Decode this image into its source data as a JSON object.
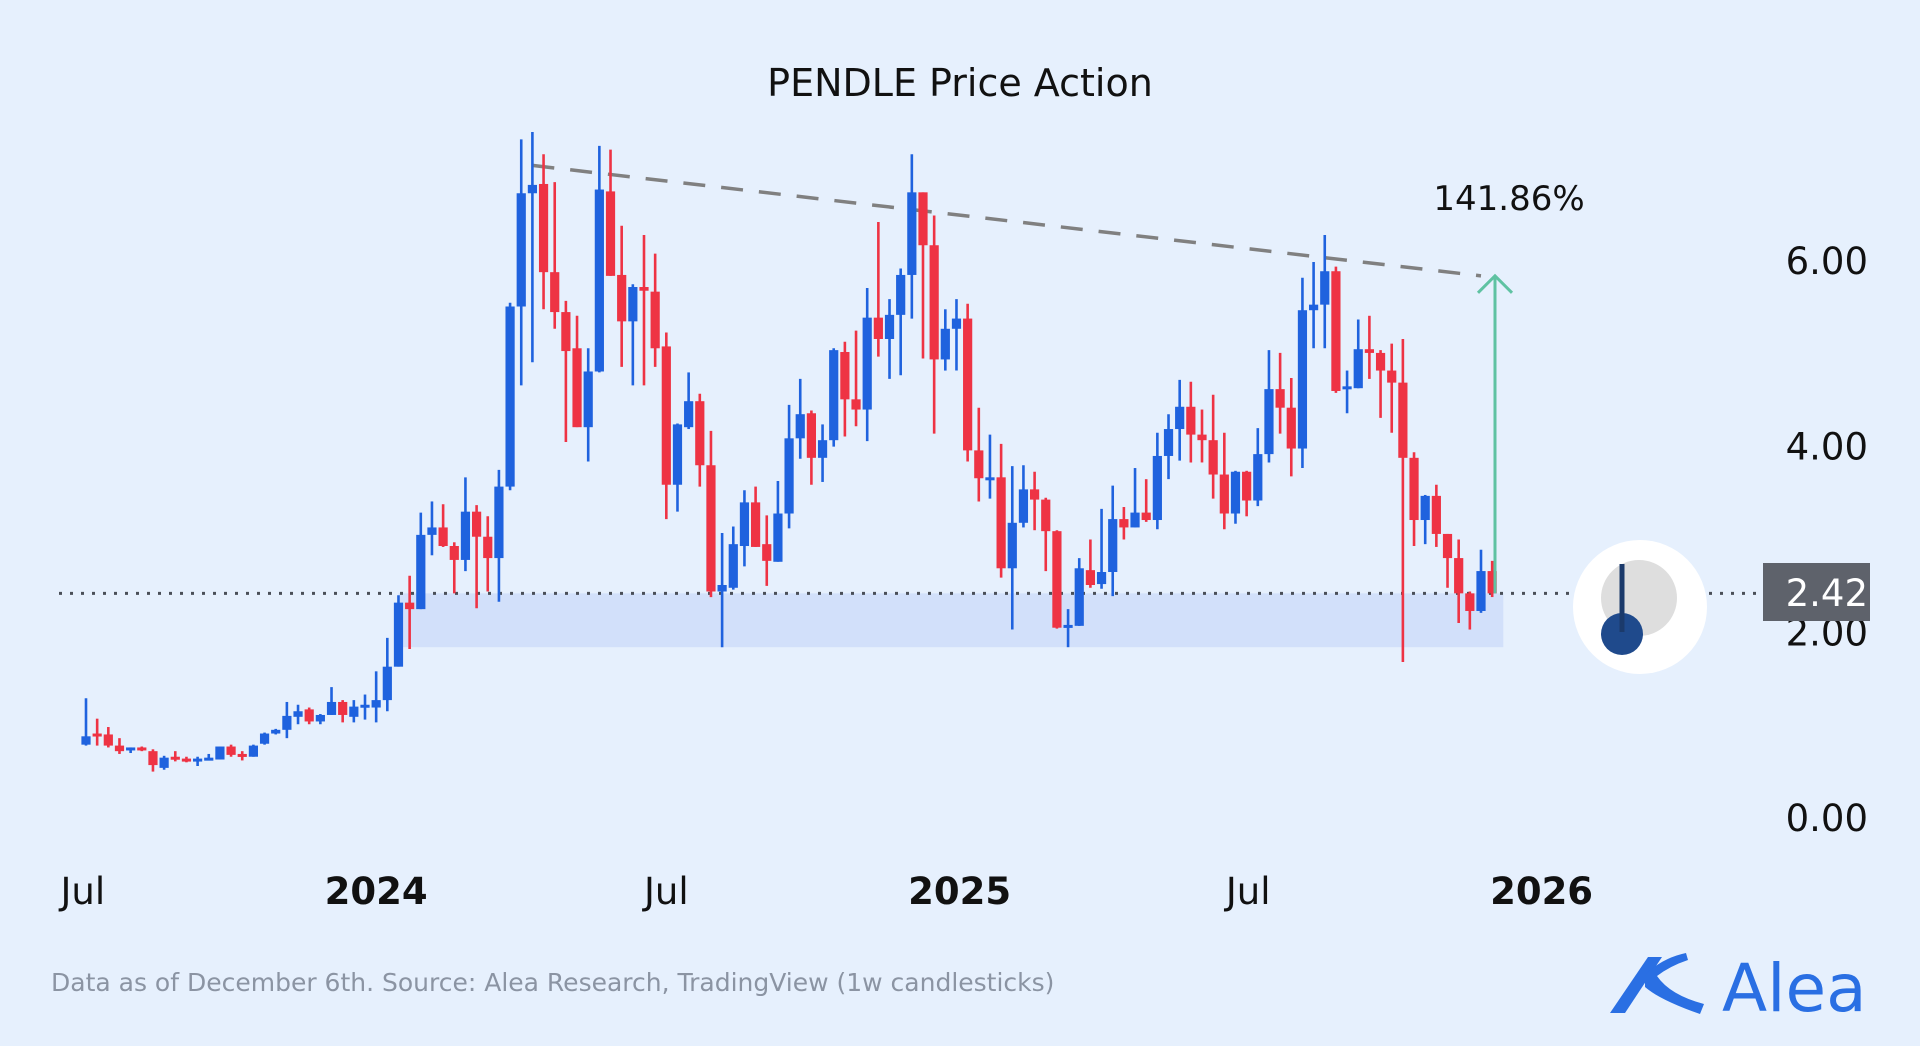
{
  "chart_data": {
    "type": "candlestick",
    "title": "PENDLE Price Action",
    "interval": "1w",
    "y_ticks": [
      "0.00",
      "2.00",
      "4.00",
      "6.00"
    ],
    "y_tick_values": [
      0,
      2,
      4,
      6
    ],
    "ylim": [
      0,
      7.6
    ],
    "xlim": [
      "2023-06-26",
      "2026-01-20"
    ],
    "x_ticks": [
      {
        "label": "Jul",
        "date": "2023-07-01",
        "bold": false
      },
      {
        "label": "2024",
        "date": "2024-01-01",
        "bold": true
      },
      {
        "label": "Jul",
        "date": "2024-07-01",
        "bold": false
      },
      {
        "label": "2025",
        "date": "2025-01-01",
        "bold": true
      },
      {
        "label": "Jul",
        "date": "2025-07-01",
        "bold": false
      },
      {
        "label": "2026",
        "date": "2026-01-01",
        "bold": true
      }
    ],
    "grid": false,
    "colors": {
      "up": "#1f62de",
      "down": "#ee3344",
      "background": "#e6f0fd",
      "arrow": "#5fc2a2",
      "trendline": "#808080",
      "support_zone": "#d2e0fa",
      "last_price_box": "#5e626b"
    },
    "candle_fields": [
      "date",
      "open",
      "high",
      "low",
      "close"
    ],
    "candles": [
      [
        "2023-07-03",
        0.79,
        1.29,
        0.78,
        0.88
      ],
      [
        "2023-07-10",
        0.91,
        1.07,
        0.78,
        0.88
      ],
      [
        "2023-07-17",
        0.9,
        0.98,
        0.76,
        0.78
      ],
      [
        "2023-07-24",
        0.78,
        0.86,
        0.69,
        0.72
      ],
      [
        "2023-07-31",
        0.74,
        0.76,
        0.7,
        0.76
      ],
      [
        "2023-08-07",
        0.76,
        0.77,
        0.72,
        0.74
      ],
      [
        "2023-08-14",
        0.72,
        0.74,
        0.5,
        0.57
      ],
      [
        "2023-08-21",
        0.54,
        0.67,
        0.52,
        0.65
      ],
      [
        "2023-08-28",
        0.66,
        0.72,
        0.61,
        0.63
      ],
      [
        "2023-09-04",
        0.64,
        0.66,
        0.6,
        0.62
      ],
      [
        "2023-09-11",
        0.62,
        0.66,
        0.56,
        0.64
      ],
      [
        "2023-09-18",
        0.63,
        0.69,
        0.62,
        0.65
      ],
      [
        "2023-09-25",
        0.63,
        0.77,
        0.63,
        0.77
      ],
      [
        "2023-10-02",
        0.77,
        0.79,
        0.66,
        0.68
      ],
      [
        "2023-10-09",
        0.69,
        0.72,
        0.62,
        0.66
      ],
      [
        "2023-10-16",
        0.66,
        0.79,
        0.66,
        0.78
      ],
      [
        "2023-10-23",
        0.8,
        0.92,
        0.79,
        0.91
      ],
      [
        "2023-10-30",
        0.91,
        0.96,
        0.9,
        0.95
      ],
      [
        "2023-11-06",
        0.95,
        1.25,
        0.86,
        1.1
      ],
      [
        "2023-11-13",
        1.09,
        1.22,
        1.01,
        1.15
      ],
      [
        "2023-11-20",
        1.17,
        1.19,
        1.01,
        1.04
      ],
      [
        "2023-11-27",
        1.04,
        1.12,
        1.01,
        1.11
      ],
      [
        "2023-12-04",
        1.11,
        1.41,
        1.11,
        1.25
      ],
      [
        "2023-12-11",
        1.25,
        1.27,
        1.03,
        1.11
      ],
      [
        "2023-12-18",
        1.09,
        1.27,
        1.03,
        1.2
      ],
      [
        "2023-12-25",
        1.19,
        1.33,
        1.06,
        1.22
      ],
      [
        "2024-01-01",
        1.19,
        1.58,
        1.03,
        1.27
      ],
      [
        "2024-01-08",
        1.27,
        1.94,
        1.15,
        1.63
      ],
      [
        "2024-01-15",
        1.63,
        2.4,
        1.63,
        2.32
      ],
      [
        "2024-01-22",
        2.32,
        2.61,
        1.82,
        2.25
      ],
      [
        "2024-01-29",
        2.25,
        3.29,
        2.25,
        3.05
      ],
      [
        "2024-02-05",
        3.05,
        3.41,
        2.83,
        3.13
      ],
      [
        "2024-02-12",
        3.13,
        3.38,
        2.92,
        2.93
      ],
      [
        "2024-02-19",
        2.93,
        2.97,
        2.42,
        2.78
      ],
      [
        "2024-02-26",
        2.78,
        3.67,
        2.66,
        3.3
      ],
      [
        "2024-03-04",
        3.3,
        3.37,
        2.26,
        3.03
      ],
      [
        "2024-03-11",
        3.03,
        3.25,
        2.44,
        2.8
      ],
      [
        "2024-03-18",
        2.8,
        3.75,
        2.33,
        3.57
      ],
      [
        "2024-03-25",
        3.57,
        5.55,
        3.53,
        5.51
      ],
      [
        "2024-04-01",
        5.51,
        7.31,
        4.66,
        6.73
      ],
      [
        "2024-04-08",
        6.73,
        7.39,
        4.91,
        6.82
      ],
      [
        "2024-04-15",
        6.83,
        7.15,
        5.48,
        5.88
      ],
      [
        "2024-04-22",
        5.88,
        6.85,
        5.27,
        5.45
      ],
      [
        "2024-04-29",
        5.45,
        5.57,
        4.05,
        5.03
      ],
      [
        "2024-05-06",
        5.06,
        5.41,
        4.21,
        4.21
      ],
      [
        "2024-05-13",
        4.21,
        5.06,
        3.84,
        4.81
      ],
      [
        "2024-05-20",
        4.81,
        7.24,
        4.8,
        6.77
      ],
      [
        "2024-05-27",
        6.75,
        7.2,
        5.84,
        5.84
      ],
      [
        "2024-06-03",
        5.85,
        6.38,
        4.86,
        5.35
      ],
      [
        "2024-06-10",
        5.35,
        5.75,
        4.66,
        5.72
      ],
      [
        "2024-06-17",
        5.72,
        6.28,
        4.66,
        5.68
      ],
      [
        "2024-06-24",
        5.67,
        6.08,
        4.86,
        5.06
      ],
      [
        "2024-07-01",
        5.08,
        5.23,
        3.22,
        3.59
      ],
      [
        "2024-07-08",
        3.59,
        4.25,
        3.3,
        4.24
      ],
      [
        "2024-07-15",
        4.21,
        4.8,
        4.19,
        4.49
      ],
      [
        "2024-07-22",
        4.49,
        4.57,
        3.57,
        3.8
      ],
      [
        "2024-07-29",
        3.8,
        4.17,
        2.38,
        2.44
      ],
      [
        "2024-08-05",
        2.44,
        3.07,
        1.84,
        2.51
      ],
      [
        "2024-08-12",
        2.48,
        3.14,
        2.46,
        2.95
      ],
      [
        "2024-08-19",
        2.93,
        3.53,
        2.71,
        3.4
      ],
      [
        "2024-08-26",
        3.4,
        3.57,
        2.92,
        2.92
      ],
      [
        "2024-09-02",
        2.95,
        3.26,
        2.5,
        2.77
      ],
      [
        "2024-09-09",
        2.76,
        3.63,
        2.76,
        3.28
      ],
      [
        "2024-09-16",
        3.28,
        4.45,
        3.12,
        4.09
      ],
      [
        "2024-09-23",
        4.09,
        4.73,
        3.87,
        4.35
      ],
      [
        "2024-09-30",
        4.36,
        4.39,
        3.59,
        3.88
      ],
      [
        "2024-10-07",
        3.88,
        4.24,
        3.62,
        4.07
      ],
      [
        "2024-10-14",
        4.07,
        5.06,
        4.0,
        5.04
      ],
      [
        "2024-10-21",
        5.02,
        5.13,
        4.11,
        4.51
      ],
      [
        "2024-10-28",
        4.51,
        5.25,
        4.22,
        4.4
      ],
      [
        "2024-11-04",
        4.4,
        5.71,
        4.06,
        5.39
      ],
      [
        "2024-11-11",
        5.39,
        6.42,
        4.97,
        5.16
      ],
      [
        "2024-11-18",
        5.16,
        5.59,
        4.73,
        5.42
      ],
      [
        "2024-11-25",
        5.42,
        5.92,
        4.77,
        5.85
      ],
      [
        "2024-12-02",
        5.85,
        7.15,
        5.38,
        6.74
      ],
      [
        "2024-12-09",
        6.74,
        6.74,
        4.95,
        6.17
      ],
      [
        "2024-12-16",
        6.17,
        6.49,
        4.14,
        4.94
      ],
      [
        "2024-12-23",
        4.94,
        5.48,
        4.82,
        5.27
      ],
      [
        "2024-12-30",
        5.27,
        5.59,
        4.82,
        5.38
      ],
      [
        "2025-01-06",
        5.38,
        5.54,
        3.84,
        3.96
      ],
      [
        "2025-01-13",
        3.96,
        4.42,
        3.41,
        3.66
      ],
      [
        "2025-01-20",
        3.66,
        4.13,
        3.44,
        3.67
      ],
      [
        "2025-01-27",
        3.67,
        4.03,
        2.59,
        2.69
      ],
      [
        "2025-02-03",
        2.69,
        3.79,
        2.03,
        3.18
      ],
      [
        "2025-02-10",
        3.18,
        3.8,
        3.13,
        3.54
      ],
      [
        "2025-02-17",
        3.54,
        3.73,
        3.1,
        3.43
      ],
      [
        "2025-02-24",
        3.43,
        3.45,
        2.66,
        3.09
      ],
      [
        "2025-03-03",
        3.09,
        3.1,
        2.04,
        2.05
      ],
      [
        "2025-03-10",
        2.07,
        2.25,
        1.84,
        2.08
      ],
      [
        "2025-03-17",
        2.07,
        2.8,
        2.07,
        2.69
      ],
      [
        "2025-03-24",
        2.67,
        3.0,
        2.48,
        2.51
      ],
      [
        "2025-03-31",
        2.52,
        3.33,
        2.47,
        2.65
      ],
      [
        "2025-04-07",
        2.65,
        3.58,
        2.39,
        3.22
      ],
      [
        "2025-04-14",
        3.22,
        3.35,
        3.0,
        3.13
      ],
      [
        "2025-04-21",
        3.13,
        3.77,
        3.13,
        3.29
      ],
      [
        "2025-04-28",
        3.29,
        3.65,
        3.19,
        3.21
      ],
      [
        "2025-05-05",
        3.21,
        4.15,
        3.11,
        3.9
      ],
      [
        "2025-05-12",
        3.9,
        4.35,
        3.65,
        4.19
      ],
      [
        "2025-05-19",
        4.19,
        4.72,
        3.85,
        4.43
      ],
      [
        "2025-05-26",
        4.43,
        4.7,
        3.83,
        4.13
      ],
      [
        "2025-06-02",
        4.13,
        4.4,
        3.83,
        4.07
      ],
      [
        "2025-06-09",
        4.07,
        4.56,
        3.44,
        3.7
      ],
      [
        "2025-06-16",
        3.7,
        4.15,
        3.11,
        3.28
      ],
      [
        "2025-06-23",
        3.28,
        3.74,
        3.17,
        3.73
      ],
      [
        "2025-06-30",
        3.73,
        3.74,
        3.25,
        3.42
      ],
      [
        "2025-07-07",
        3.42,
        4.2,
        3.36,
        3.92
      ],
      [
        "2025-07-14",
        3.92,
        5.04,
        3.83,
        4.62
      ],
      [
        "2025-07-21",
        4.62,
        5.01,
        4.14,
        4.42
      ],
      [
        "2025-07-28",
        4.42,
        4.74,
        3.68,
        3.98
      ],
      [
        "2025-08-04",
        3.98,
        5.82,
        3.77,
        5.47
      ],
      [
        "2025-08-11",
        5.47,
        5.99,
        5.06,
        5.53
      ],
      [
        "2025-08-18",
        5.53,
        6.28,
        5.06,
        5.89
      ],
      [
        "2025-08-25",
        5.89,
        5.94,
        4.58,
        4.6
      ],
      [
        "2025-09-01",
        4.63,
        4.82,
        4.36,
        4.65
      ],
      [
        "2025-09-08",
        4.63,
        5.37,
        4.63,
        5.05
      ],
      [
        "2025-09-15",
        5.05,
        5.41,
        4.73,
        5.01
      ],
      [
        "2025-09-22",
        5.01,
        5.04,
        4.31,
        4.82
      ],
      [
        "2025-09-29",
        4.82,
        5.11,
        4.15,
        4.69
      ],
      [
        "2025-10-06",
        4.69,
        5.16,
        1.68,
        3.88
      ],
      [
        "2025-10-13",
        3.88,
        3.94,
        2.93,
        3.21
      ],
      [
        "2025-10-20",
        3.21,
        3.48,
        2.95,
        3.47
      ],
      [
        "2025-10-27",
        3.47,
        3.59,
        2.92,
        3.06
      ],
      [
        "2025-11-03",
        3.06,
        3.06,
        2.48,
        2.8
      ],
      [
        "2025-11-10",
        2.8,
        3.0,
        2.1,
        2.42
      ],
      [
        "2025-11-17",
        2.42,
        2.44,
        2.03,
        2.23
      ],
      [
        "2025-11-24",
        2.23,
        2.89,
        2.21,
        2.66
      ],
      [
        "2025-12-01",
        2.66,
        2.77,
        2.38,
        2.42
      ]
    ],
    "last_price": 2.42,
    "last_price_label": "2.42",
    "trendline": {
      "style": "dashed",
      "from": {
        "date": "2024-04-08",
        "price": 7.03
      },
      "to": {
        "date": "2025-11-24",
        "price": 5.84
      }
    },
    "support_zone": {
      "from_date": "2024-01-15",
      "to_date": "2025-12-08",
      "low": 1.84,
      "high": 2.42
    },
    "target_arrow": {
      "date": "2025-11-24",
      "from_price": 2.42,
      "to_price": 5.84,
      "label": "141.86%"
    }
  },
  "footer": {
    "source": "Data as of December 6th. Source: Alea Research, TradingView (1w candlesticks)"
  },
  "brand": {
    "name": "Alea",
    "color": "#2a6fe3"
  }
}
